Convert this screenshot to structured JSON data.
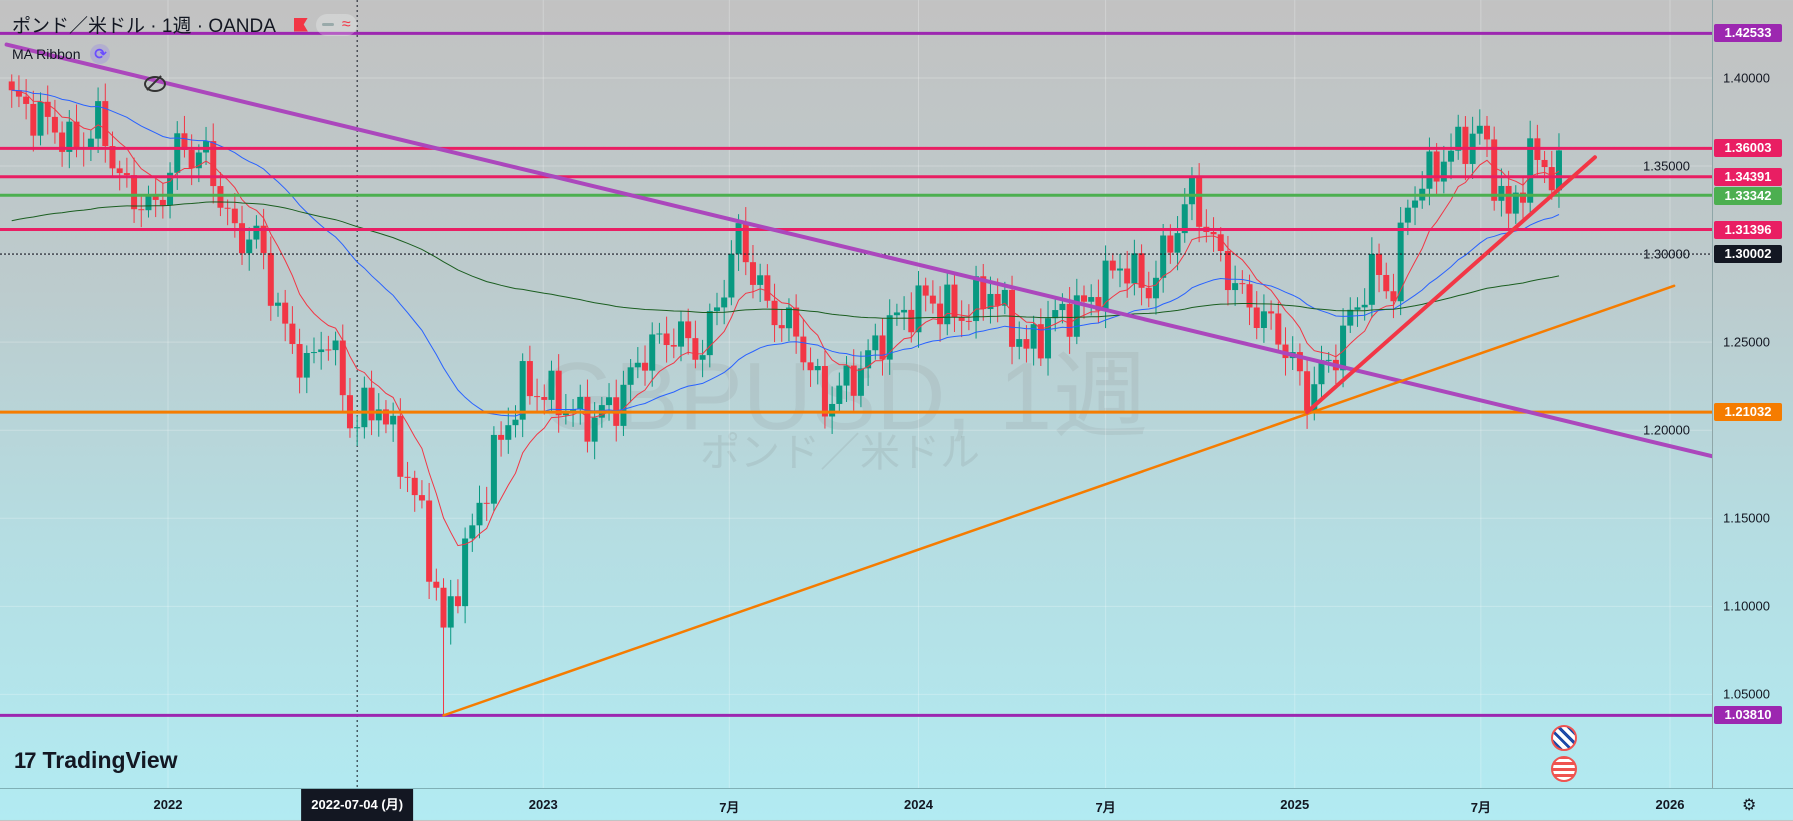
{
  "header": {
    "title": "ポンド／米ドル · 1週 · OANDA",
    "indicator": "MA Ribbon"
  },
  "watermark": {
    "symbol": "GBPUSD, 1週",
    "name": "ポンド／米ドル"
  },
  "brand": {
    "logo_text": "TradingView",
    "logo_mark": "17"
  },
  "crosshair": {
    "date": "2022-07-04",
    "label": "2022-07-04 (月)"
  },
  "colors": {
    "up": "#089981",
    "down": "#f23645",
    "purple": "#9c27b0",
    "pink": "#e91e63",
    "green": "#4caf50",
    "orange": "#f57c00",
    "black": "#131722"
  },
  "chart_data": {
    "type": "candlestick",
    "symbol": "GBPUSD",
    "interval": "1W",
    "ylim": [
      1.0,
      1.445
    ],
    "xrange": [
      "2021-07-28",
      "2026-03-20"
    ],
    "y_ticks": [
      "1.40000",
      "1.35000",
      "1.30000",
      "1.25000",
      "1.20000",
      "1.15000",
      "1.10000",
      "1.05000"
    ],
    "x_ticks": [
      {
        "date": "2022-01-01",
        "label": "2022"
      },
      {
        "date": "2023-01-01",
        "label": "2023"
      },
      {
        "date": "2023-07-01",
        "label": "7月"
      },
      {
        "date": "2024-01-01",
        "label": "2024"
      },
      {
        "date": "2024-07-01",
        "label": "7月"
      },
      {
        "date": "2025-01-01",
        "label": "2025"
      },
      {
        "date": "2025-07-01",
        "label": "7月"
      },
      {
        "date": "2026-01-01",
        "label": "2026"
      }
    ],
    "first_week": "2021-08-02",
    "last_week": "2025-09-15",
    "close_path": [
      [
        "2021-08-02",
        1.388
      ],
      [
        "2021-09-06",
        1.375
      ],
      [
        "2021-10-04",
        1.36
      ],
      [
        "2021-10-25",
        1.375
      ],
      [
        "2021-11-22",
        1.335
      ],
      [
        "2021-12-20",
        1.325
      ],
      [
        "2022-01-10",
        1.36
      ],
      [
        "2022-02-07",
        1.355
      ],
      [
        "2022-03-07",
        1.31
      ],
      [
        "2022-03-28",
        1.31
      ],
      [
        "2022-04-25",
        1.255
      ],
      [
        "2022-05-16",
        1.235
      ],
      [
        "2022-06-06",
        1.255
      ],
      [
        "2022-06-27",
        1.205
      ],
      [
        "2022-07-25",
        1.215
      ],
      [
        "2022-08-15",
        1.185
      ],
      [
        "2022-09-05",
        1.15
      ],
      [
        "2022-09-26",
        1.085
      ],
      [
        "2022-10-17",
        1.13
      ],
      [
        "2022-11-14",
        1.185
      ],
      [
        "2022-12-12",
        1.225
      ],
      [
        "2023-01-09",
        1.22
      ],
      [
        "2023-02-13",
        1.205
      ],
      [
        "2023-03-13",
        1.215
      ],
      [
        "2023-04-10",
        1.245
      ],
      [
        "2023-05-08",
        1.255
      ],
      [
        "2023-06-05",
        1.245
      ],
      [
        "2023-07-10",
        1.31
      ],
      [
        "2023-08-07",
        1.27
      ],
      [
        "2023-09-04",
        1.255
      ],
      [
        "2023-10-02",
        1.215
      ],
      [
        "2023-11-06",
        1.235
      ],
      [
        "2023-12-04",
        1.26
      ],
      [
        "2024-01-08",
        1.275
      ],
      [
        "2024-02-12",
        1.265
      ],
      [
        "2024-03-11",
        1.28
      ],
      [
        "2024-04-15",
        1.245
      ],
      [
        "2024-05-13",
        1.265
      ],
      [
        "2024-06-10",
        1.27
      ],
      [
        "2024-07-15",
        1.295
      ],
      [
        "2024-08-12",
        1.28
      ],
      [
        "2024-09-23",
        1.335
      ],
      [
        "2024-10-14",
        1.305
      ],
      [
        "2024-11-11",
        1.275
      ],
      [
        "2024-12-16",
        1.255
      ],
      [
        "2025-01-13",
        1.22
      ],
      [
        "2025-02-10",
        1.245
      ],
      [
        "2025-03-17",
        1.29
      ],
      [
        "2025-04-07",
        1.28
      ],
      [
        "2025-04-21",
        1.33
      ],
      [
        "2025-05-26",
        1.355
      ],
      [
        "2025-06-30",
        1.37
      ],
      [
        "2025-07-28",
        1.32
      ],
      [
        "2025-08-18",
        1.355
      ],
      [
        "2025-09-15",
        1.345
      ]
    ],
    "extreme_low": {
      "date": "2022-09-26",
      "low": 1.0381
    },
    "moving_averages": [
      {
        "name": "MA fast",
        "color": "#f23645",
        "period": 10
      },
      {
        "name": "MA mid",
        "color": "#2962ff",
        "period": 40
      },
      {
        "name": "MA slow",
        "color": "#1b5e20",
        "period": 200
      }
    ],
    "horizontal_levels": [
      {
        "price": 1.42533,
        "label": "1.42533",
        "color": "#9c27b0",
        "style": "solid"
      },
      {
        "price": 1.36003,
        "label": "1.36003",
        "color": "#e91e63",
        "style": "solid"
      },
      {
        "price": 1.34391,
        "label": "1.34391",
        "color": "#e91e63",
        "style": "solid"
      },
      {
        "price": 1.33342,
        "label": "1.33342",
        "color": "#4caf50",
        "style": "solid"
      },
      {
        "price": 1.31396,
        "label": "1.31396",
        "color": "#e91e63",
        "style": "solid"
      },
      {
        "price": 1.30002,
        "label": "1.30002",
        "color": "#131722",
        "style": "dotted"
      },
      {
        "price": 1.21032,
        "label": "1.21032",
        "color": "#f57c00",
        "style": "solid"
      },
      {
        "price": 1.0381,
        "label": "1.03810",
        "color": "#9c27b0",
        "style": "solid"
      }
    ],
    "trendlines": [
      {
        "name": "purple-downtrend",
        "color": "#ab47bc",
        "points": [
          [
            "2021-07-28",
            1.419
          ],
          [
            "2026-03-20",
            1.18
          ]
        ]
      },
      {
        "name": "orange-uptrend",
        "color": "#f57c00",
        "points": [
          [
            "2022-09-26",
            1.0381
          ],
          [
            "2026-01-05",
            1.282
          ]
        ]
      },
      {
        "name": "red-uptrend",
        "color": "#f23645",
        "points": [
          [
            "2025-01-13",
            1.2103
          ],
          [
            "2025-10-20",
            1.355
          ]
        ]
      }
    ]
  }
}
